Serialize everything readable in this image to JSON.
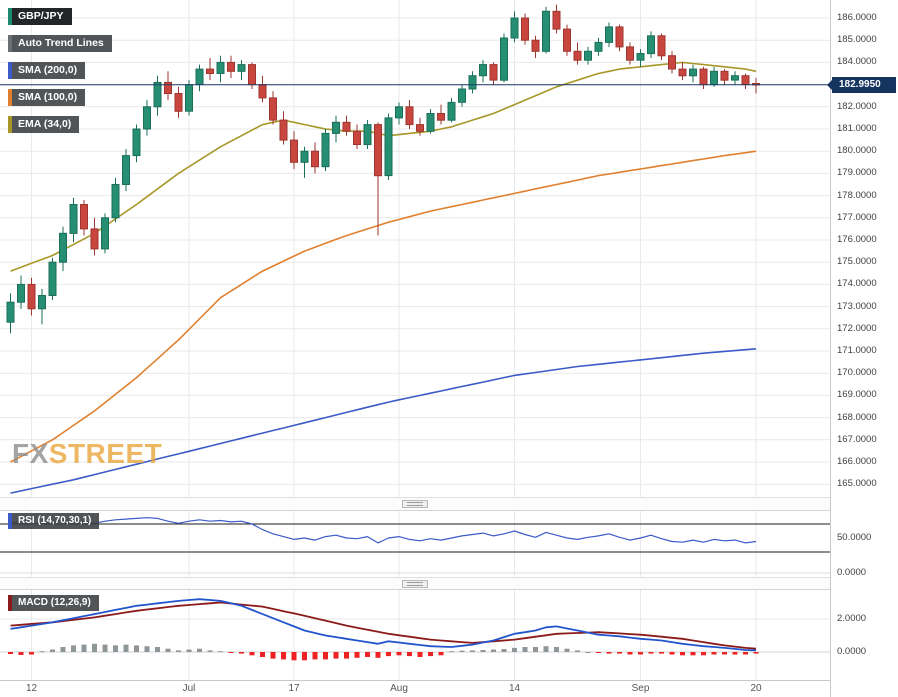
{
  "chart": {
    "symbol": "GBP/JPY",
    "last_price": "182.9950"
  },
  "legend": [
    {
      "label": "GBP/JPY",
      "accent": "#1d8a6e"
    },
    {
      "label": "Auto Trend Lines",
      "accent": "#6a6f74"
    },
    {
      "label": "SMA (200,0)",
      "accent": "#3c5ac8"
    },
    {
      "label": "SMA (100,0)",
      "accent": "#e0802e"
    },
    {
      "label": "EMA (34,0)",
      "accent": "#a89728"
    }
  ],
  "panels": {
    "rsi": {
      "label": "RSI (14,70,30,1)",
      "accent": "#3c5ac8"
    },
    "macd": {
      "label": "MACD (12,26,9)",
      "accent": "#8b1a1a"
    }
  },
  "watermark": {
    "part1": "FX",
    "part2": "STREET"
  },
  "chart_data": {
    "type": "candlestick",
    "symbol": "GBP/JPY",
    "price_axis": {
      "min": 165,
      "max": 186,
      "step": 1,
      "decimals": 4
    },
    "x_labels": [
      {
        "text": "12",
        "i": 2
      },
      {
        "text": "Jul",
        "i": 17
      },
      {
        "text": "17",
        "i": 27
      },
      {
        "text": "Aug",
        "i": 37
      },
      {
        "text": "14",
        "i": 48
      },
      {
        "text": "Sep",
        "i": 60
      },
      {
        "text": "20",
        "i": 71
      }
    ],
    "colors": {
      "up": "#268e72",
      "up_border": "#1b6f59",
      "down": "#c9463f",
      "down_border": "#9e362f",
      "grid": "#e9e9e9"
    },
    "price_line": {
      "value": 182.995,
      "label": "182.9950",
      "color": "#1c3a66"
    },
    "candles": [
      [
        172.3,
        173.6,
        171.8,
        173.2
      ],
      [
        173.2,
        174.4,
        172.9,
        174.0
      ],
      [
        174.0,
        174.3,
        172.6,
        172.9
      ],
      [
        172.9,
        173.8,
        172.2,
        173.5
      ],
      [
        173.5,
        175.2,
        173.3,
        175.0
      ],
      [
        175.0,
        176.6,
        174.6,
        176.3
      ],
      [
        176.3,
        177.9,
        175.9,
        177.6
      ],
      [
        177.6,
        177.8,
        176.2,
        176.5
      ],
      [
        176.5,
        177.0,
        175.3,
        175.6
      ],
      [
        175.6,
        177.2,
        175.4,
        177.0
      ],
      [
        177.0,
        178.8,
        176.8,
        178.5
      ],
      [
        178.5,
        180.1,
        178.2,
        179.8
      ],
      [
        179.8,
        181.2,
        179.5,
        181.0
      ],
      [
        181.0,
        182.3,
        180.7,
        182.0
      ],
      [
        182.0,
        183.4,
        181.6,
        183.1
      ],
      [
        183.1,
        183.6,
        182.3,
        182.6
      ],
      [
        182.6,
        182.9,
        181.5,
        181.8
      ],
      [
        181.8,
        183.2,
        181.6,
        183.0
      ],
      [
        183.0,
        183.9,
        182.7,
        183.7
      ],
      [
        183.7,
        184.2,
        183.2,
        183.5
      ],
      [
        183.5,
        184.3,
        183.1,
        184.0
      ],
      [
        184.0,
        184.3,
        183.3,
        183.6
      ],
      [
        183.6,
        184.1,
        183.2,
        183.9
      ],
      [
        183.9,
        184.0,
        182.8,
        183.0
      ],
      [
        183.0,
        183.4,
        182.2,
        182.4
      ],
      [
        182.4,
        182.7,
        181.2,
        181.4
      ],
      [
        181.4,
        181.8,
        180.3,
        180.5
      ],
      [
        180.5,
        180.9,
        179.2,
        179.5
      ],
      [
        179.5,
        180.2,
        178.8,
        180.0
      ],
      [
        180.0,
        180.4,
        179.0,
        179.3
      ],
      [
        179.3,
        181.0,
        179.1,
        180.8
      ],
      [
        180.8,
        181.6,
        180.4,
        181.3
      ],
      [
        181.3,
        181.6,
        180.7,
        180.9
      ],
      [
        180.9,
        181.2,
        180.1,
        180.3
      ],
      [
        180.3,
        181.4,
        180.1,
        181.2
      ],
      [
        181.2,
        181.3,
        176.2,
        178.9
      ],
      [
        178.9,
        181.7,
        178.7,
        181.5
      ],
      [
        181.5,
        182.2,
        181.2,
        182.0
      ],
      [
        182.0,
        182.3,
        181.0,
        181.2
      ],
      [
        181.2,
        181.5,
        180.7,
        180.9
      ],
      [
        180.9,
        181.9,
        180.8,
        181.7
      ],
      [
        181.7,
        182.1,
        181.2,
        181.4
      ],
      [
        181.4,
        182.4,
        181.3,
        182.2
      ],
      [
        182.2,
        183.0,
        182.0,
        182.8
      ],
      [
        182.8,
        183.6,
        182.6,
        183.4
      ],
      [
        183.4,
        184.1,
        183.1,
        183.9
      ],
      [
        183.9,
        184.0,
        183.0,
        183.2
      ],
      [
        183.2,
        185.3,
        183.1,
        185.1
      ],
      [
        185.1,
        186.3,
        184.9,
        186.0
      ],
      [
        186.0,
        186.2,
        184.8,
        185.0
      ],
      [
        185.0,
        185.2,
        184.2,
        184.5
      ],
      [
        184.5,
        186.5,
        184.4,
        186.3
      ],
      [
        186.3,
        186.6,
        185.3,
        185.5
      ],
      [
        185.5,
        185.7,
        184.3,
        184.5
      ],
      [
        184.5,
        184.9,
        183.9,
        184.1
      ],
      [
        184.1,
        184.7,
        183.9,
        184.5
      ],
      [
        184.5,
        185.1,
        184.3,
        184.9
      ],
      [
        184.9,
        185.8,
        184.7,
        185.6
      ],
      [
        185.6,
        185.7,
        184.5,
        184.7
      ],
      [
        184.7,
        184.9,
        183.9,
        184.1
      ],
      [
        184.1,
        184.6,
        183.8,
        184.4
      ],
      [
        184.4,
        185.4,
        184.2,
        185.2
      ],
      [
        185.2,
        185.3,
        184.1,
        184.3
      ],
      [
        184.3,
        184.5,
        183.5,
        183.7
      ],
      [
        183.7,
        184.0,
        183.2,
        183.4
      ],
      [
        183.4,
        183.9,
        183.1,
        183.7
      ],
      [
        183.7,
        183.8,
        182.8,
        183.0
      ],
      [
        183.0,
        183.8,
        182.9,
        183.6
      ],
      [
        183.6,
        183.7,
        183.0,
        183.2
      ],
      [
        183.2,
        183.6,
        183.0,
        183.4
      ],
      [
        183.4,
        183.5,
        182.8,
        183.0
      ],
      [
        183.05,
        183.3,
        182.6,
        182.995
      ]
    ],
    "overlays": [
      {
        "name": "SMA (200,0)",
        "color": "#3c5ac8",
        "points": [
          [
            0,
            164.6
          ],
          [
            6,
            165.2
          ],
          [
            12,
            165.9
          ],
          [
            18,
            166.6
          ],
          [
            24,
            167.3
          ],
          [
            30,
            168.0
          ],
          [
            36,
            168.7
          ],
          [
            42,
            169.3
          ],
          [
            48,
            169.9
          ],
          [
            54,
            170.3
          ],
          [
            60,
            170.6
          ],
          [
            66,
            170.9
          ],
          [
            71,
            171.1
          ]
        ]
      },
      {
        "name": "SMA (100,0)",
        "color": "#e0802e",
        "points": [
          [
            0,
            166.0
          ],
          [
            4,
            167.0
          ],
          [
            8,
            168.3
          ],
          [
            12,
            169.8
          ],
          [
            16,
            171.5
          ],
          [
            20,
            173.4
          ],
          [
            24,
            174.6
          ],
          [
            28,
            175.5
          ],
          [
            32,
            176.2
          ],
          [
            36,
            176.8
          ],
          [
            40,
            177.3
          ],
          [
            44,
            177.7
          ],
          [
            48,
            178.1
          ],
          [
            52,
            178.5
          ],
          [
            56,
            178.9
          ],
          [
            60,
            179.2
          ],
          [
            64,
            179.5
          ],
          [
            68,
            179.8
          ],
          [
            71,
            180.0
          ]
        ]
      },
      {
        "name": "EMA (34,0)",
        "color": "#a89728",
        "points": [
          [
            0,
            174.6
          ],
          [
            4,
            175.3
          ],
          [
            8,
            176.3
          ],
          [
            12,
            177.6
          ],
          [
            16,
            179.0
          ],
          [
            20,
            180.2
          ],
          [
            24,
            181.2
          ],
          [
            26,
            181.4
          ],
          [
            28,
            181.2
          ],
          [
            30,
            181.0
          ],
          [
            32,
            180.9
          ],
          [
            34,
            180.9
          ],
          [
            36,
            180.7
          ],
          [
            38,
            180.8
          ],
          [
            40,
            180.9
          ],
          [
            42,
            181.1
          ],
          [
            44,
            181.4
          ],
          [
            46,
            181.7
          ],
          [
            48,
            182.1
          ],
          [
            50,
            182.5
          ],
          [
            52,
            182.9
          ],
          [
            54,
            183.2
          ],
          [
            56,
            183.5
          ],
          [
            58,
            183.7
          ],
          [
            60,
            183.8
          ],
          [
            62,
            183.9
          ],
          [
            64,
            184.0
          ],
          [
            66,
            183.9
          ],
          [
            68,
            183.8
          ],
          [
            70,
            183.7
          ],
          [
            71,
            183.6
          ]
        ]
      }
    ],
    "rsi": {
      "name": "RSI (14,70,30,1)",
      "color": "#3c5ac8",
      "levels": [
        70,
        30
      ],
      "axis_ticks": [
        50,
        0
      ],
      "values": [
        72,
        73,
        70,
        71,
        73,
        75,
        76,
        73,
        71,
        74,
        76,
        77,
        78,
        79,
        78,
        74,
        71,
        74,
        76,
        74,
        75,
        73,
        74,
        70,
        62,
        56,
        52,
        48,
        50,
        47,
        52,
        54,
        50,
        49,
        52,
        43,
        50,
        52,
        48,
        46,
        49,
        47,
        50,
        53,
        55,
        57,
        53,
        56,
        60,
        55,
        51,
        58,
        54,
        50,
        48,
        51,
        53,
        56,
        51,
        47,
        50,
        54,
        49,
        45,
        44,
        47,
        44,
        48,
        46,
        47,
        43,
        45
      ]
    },
    "macd": {
      "name": "MACD (12,26,9)",
      "axis_ticks": [
        2,
        0
      ],
      "macd_color": "#2255cc",
      "signal_color": "#8b1a1a",
      "hist_pos_color": "#8f9699",
      "hist_neg_color": "#ee2222",
      "macd": [
        [
          0,
          1.4
        ],
        [
          4,
          1.8
        ],
        [
          8,
          2.3
        ],
        [
          12,
          2.8
        ],
        [
          16,
          3.1
        ],
        [
          18,
          3.2
        ],
        [
          20,
          3.1
        ],
        [
          22,
          2.8
        ],
        [
          24,
          2.3
        ],
        [
          26,
          1.8
        ],
        [
          28,
          1.3
        ],
        [
          30,
          1.0
        ],
        [
          32,
          0.8
        ],
        [
          34,
          0.6
        ],
        [
          35,
          0.5
        ],
        [
          36,
          0.65
        ],
        [
          38,
          0.5
        ],
        [
          40,
          0.35
        ],
        [
          42,
          0.3
        ],
        [
          44,
          0.45
        ],
        [
          46,
          0.7
        ],
        [
          48,
          1.1
        ],
        [
          50,
          1.3
        ],
        [
          51,
          1.5
        ],
        [
          52,
          1.55
        ],
        [
          54,
          1.3
        ],
        [
          56,
          1.05
        ],
        [
          58,
          0.95
        ],
        [
          60,
          0.8
        ],
        [
          62,
          0.7
        ],
        [
          64,
          0.5
        ],
        [
          66,
          0.35
        ],
        [
          68,
          0.25
        ],
        [
          70,
          0.12
        ],
        [
          71,
          0.1
        ]
      ],
      "signal": [
        [
          0,
          1.6
        ],
        [
          4,
          1.8
        ],
        [
          8,
          2.1
        ],
        [
          12,
          2.5
        ],
        [
          16,
          2.8
        ],
        [
          20,
          3.0
        ],
        [
          24,
          2.75
        ],
        [
          28,
          2.2
        ],
        [
          32,
          1.6
        ],
        [
          36,
          1.1
        ],
        [
          40,
          0.75
        ],
        [
          44,
          0.55
        ],
        [
          48,
          0.75
        ],
        [
          52,
          1.1
        ],
        [
          56,
          1.2
        ],
        [
          60,
          1.05
        ],
        [
          64,
          0.8
        ],
        [
          68,
          0.4
        ],
        [
          70,
          0.25
        ],
        [
          71,
          0.2
        ]
      ],
      "histogram": [
        -0.12,
        -0.18,
        -0.15,
        0.05,
        0.15,
        0.3,
        0.4,
        0.45,
        0.5,
        0.45,
        0.4,
        0.45,
        0.4,
        0.35,
        0.3,
        0.2,
        0.1,
        0.15,
        0.2,
        0.1,
        0.05,
        -0.05,
        -0.1,
        -0.2,
        -0.3,
        -0.4,
        -0.45,
        -0.5,
        -0.5,
        -0.45,
        -0.45,
        -0.4,
        -0.4,
        -0.35,
        -0.3,
        -0.35,
        -0.25,
        -0.2,
        -0.25,
        -0.3,
        -0.25,
        -0.2,
        0.05,
        0.08,
        0.1,
        0.12,
        0.15,
        0.18,
        0.25,
        0.3,
        0.3,
        0.35,
        0.3,
        0.2,
        0.1,
        0.0,
        -0.05,
        -0.1,
        -0.1,
        -0.15,
        -0.15,
        -0.1,
        -0.1,
        -0.15,
        -0.2,
        -0.2,
        -0.2,
        -0.15,
        -0.15,
        -0.15,
        -0.15,
        -0.1
      ]
    }
  }
}
